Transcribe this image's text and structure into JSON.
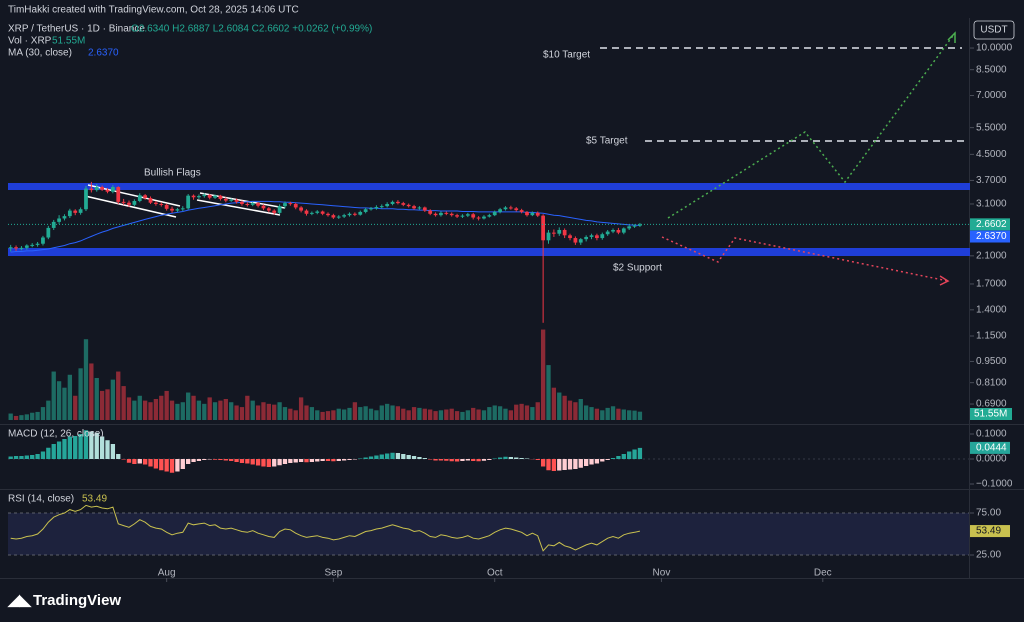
{
  "page": {
    "credit": "TimHakki created with TradingView.com, Oct 28, 2025 14:06 UTC",
    "brand": "TradingView",
    "currency": "USDT"
  },
  "chart_data": [
    {
      "type": "candlestick",
      "symbol": "XRP / TetherUS · 1D · Binance",
      "ohlc_legend": "O2.6340 H2.6887 L2.6084 C2.6602 +0.0262 (+0.99%)",
      "log_scale": true,
      "up_color": "#22ab94",
      "down_color": "#f23645",
      "xlim": [
        -0.5,
        178
      ],
      "xticks": [
        {
          "value": 29,
          "label": "Aug"
        },
        {
          "value": 60,
          "label": "Sep"
        },
        {
          "value": 90,
          "label": "Oct"
        },
        {
          "value": 121,
          "label": "Nov"
        },
        {
          "value": 151,
          "label": "Dec"
        }
      ],
      "ylim": [
        0.612,
        12.16
      ],
      "yticks": [
        {
          "value": 10,
          "label": "10.0000"
        },
        {
          "value": 8.5,
          "label": "8.5000"
        },
        {
          "value": 7,
          "label": "7.0000"
        },
        {
          "value": 5.5,
          "label": "5.5000"
        },
        {
          "value": 4.5,
          "label": "4.5000"
        },
        {
          "value": 3.7,
          "label": "3.7000"
        },
        {
          "value": 3.1,
          "label": "3.1000"
        },
        {
          "value": 2.1,
          "label": "2.1000"
        },
        {
          "value": 1.7,
          "label": "1.7000"
        },
        {
          "value": 1.4,
          "label": "1.4000"
        },
        {
          "value": 1.15,
          "label": "1.1500"
        },
        {
          "value": 0.95,
          "label": "0.9500"
        },
        {
          "value": 0.81,
          "label": "0.8100"
        },
        {
          "value": 0.69,
          "label": "0.6900"
        }
      ],
      "annotations": [
        "Bullish Flags",
        "$10 Target",
        "$5 Target",
        "$2 Support"
      ],
      "open": [
        2.22,
        2.24,
        2.22,
        2.23,
        2.27,
        2.28,
        2.3,
        2.41,
        2.59,
        2.71,
        2.78,
        2.83,
        2.95,
        2.9,
        2.98,
        3.48,
        3.44,
        3.52,
        3.45,
        3.4,
        3.52,
        3.15,
        3.13,
        3.08,
        3.17,
        3.31,
        3.24,
        3.13,
        3.1,
        3.08,
        2.99,
        2.95,
        2.98,
        3.0,
        3.3,
        3.26,
        3.29,
        3.32,
        3.25,
        3.3,
        3.22,
        3.18,
        3.2,
        3.15,
        3.1,
        3.08,
        3.12,
        3.06,
        3.0,
        2.95,
        2.9,
        3.05,
        3.12,
        3.1,
        3.02,
        2.95,
        2.88,
        2.9,
        2.93,
        2.88,
        2.85,
        2.8,
        2.82,
        2.85,
        2.88,
        2.86,
        2.92,
        2.98,
        3.0,
        3.03,
        3.05,
        3.1,
        3.15,
        3.12,
        3.08,
        3.05,
        3.0,
        3.02,
        2.95,
        2.88,
        2.85,
        2.9,
        2.88,
        2.85,
        2.82,
        2.84,
        2.87,
        2.8,
        2.78,
        2.82,
        2.85,
        2.92,
        2.98,
        3.02,
        3.0,
        2.96,
        2.92,
        2.85,
        2.9,
        2.84,
        2.36,
        2.5,
        2.48,
        2.55,
        2.45,
        2.4,
        2.32,
        2.38,
        2.42,
        2.45,
        2.4,
        2.47,
        2.52,
        2.55,
        2.5,
        2.58,
        2.62,
        2.634
      ],
      "high": [
        2.28,
        2.27,
        2.26,
        2.29,
        2.31,
        2.33,
        2.44,
        2.63,
        2.75,
        2.85,
        2.87,
        2.99,
        2.98,
        3.02,
        3.55,
        3.66,
        3.6,
        3.56,
        3.49,
        3.57,
        3.54,
        3.22,
        3.18,
        3.21,
        3.36,
        3.34,
        3.28,
        3.17,
        3.14,
        3.11,
        3.04,
        3.01,
        3.05,
        3.34,
        3.33,
        3.33,
        3.36,
        3.34,
        3.33,
        3.32,
        3.26,
        3.23,
        3.23,
        3.18,
        3.14,
        3.15,
        3.14,
        3.09,
        3.03,
        2.98,
        3.09,
        3.16,
        3.15,
        3.13,
        3.05,
        2.98,
        2.93,
        2.96,
        2.95,
        2.91,
        2.88,
        2.85,
        2.88,
        2.91,
        2.91,
        2.95,
        3.01,
        3.03,
        3.07,
        3.09,
        3.14,
        3.18,
        3.19,
        3.15,
        3.11,
        3.08,
        3.05,
        3.04,
        2.98,
        2.91,
        2.93,
        2.93,
        2.91,
        2.88,
        2.87,
        2.9,
        2.9,
        2.83,
        2.85,
        2.88,
        2.95,
        3.01,
        3.05,
        3.06,
        3.03,
        2.99,
        2.94,
        2.93,
        2.93,
        2.87,
        2.55,
        2.56,
        2.6,
        2.58,
        2.48,
        2.43,
        2.4,
        2.45,
        2.48,
        2.48,
        2.5,
        2.55,
        2.58,
        2.59,
        2.6,
        2.64,
        2.66,
        2.6887
      ],
      "low": [
        2.17,
        2.18,
        2.19,
        2.2,
        2.24,
        2.25,
        2.27,
        2.38,
        2.55,
        2.67,
        2.74,
        2.79,
        2.85,
        2.86,
        2.94,
        3.38,
        3.4,
        3.42,
        3.36,
        3.36,
        3.1,
        3.08,
        3.03,
        3.05,
        3.14,
        3.2,
        3.1,
        3.06,
        3.04,
        2.95,
        2.9,
        2.92,
        2.94,
        2.97,
        3.2,
        3.22,
        3.25,
        3.21,
        3.22,
        3.18,
        3.14,
        3.15,
        3.11,
        3.06,
        3.04,
        3.05,
        3.02,
        2.96,
        2.91,
        2.86,
        2.87,
        3.0,
        3.06,
        2.98,
        2.91,
        2.84,
        2.85,
        2.87,
        2.85,
        2.82,
        2.77,
        2.77,
        2.79,
        2.82,
        2.83,
        2.84,
        2.89,
        2.95,
        2.97,
        3.0,
        3.02,
        3.07,
        3.09,
        3.05,
        3.02,
        2.97,
        2.97,
        2.92,
        2.85,
        2.82,
        2.82,
        2.85,
        2.82,
        2.79,
        2.79,
        2.81,
        2.76,
        2.74,
        2.76,
        2.8,
        2.83,
        2.89,
        2.95,
        2.97,
        2.93,
        2.89,
        2.82,
        2.83,
        2.81,
        1.27,
        2.3,
        2.42,
        2.44,
        2.4,
        2.36,
        2.28,
        2.28,
        2.34,
        2.38,
        2.36,
        2.37,
        2.44,
        2.49,
        2.47,
        2.47,
        2.55,
        2.59,
        2.6084
      ],
      "close": [
        2.24,
        2.22,
        2.23,
        2.27,
        2.28,
        2.3,
        2.41,
        2.59,
        2.71,
        2.78,
        2.83,
        2.95,
        2.9,
        2.98,
        3.48,
        3.44,
        3.52,
        3.45,
        3.4,
        3.52,
        3.15,
        3.13,
        3.08,
        3.17,
        3.31,
        3.24,
        3.13,
        3.1,
        3.08,
        2.99,
        2.95,
        2.98,
        3.0,
        3.3,
        3.26,
        3.29,
        3.32,
        3.25,
        3.3,
        3.22,
        3.18,
        3.2,
        3.15,
        3.1,
        3.08,
        3.12,
        3.06,
        3.0,
        2.95,
        2.9,
        3.05,
        3.12,
        3.1,
        3.02,
        2.95,
        2.88,
        2.9,
        2.93,
        2.88,
        2.85,
        2.8,
        2.82,
        2.85,
        2.88,
        2.86,
        2.92,
        2.98,
        3.0,
        3.03,
        3.05,
        3.1,
        3.15,
        3.12,
        3.08,
        3.05,
        3.0,
        3.02,
        2.95,
        2.88,
        2.85,
        2.9,
        2.88,
        2.85,
        2.82,
        2.84,
        2.87,
        2.8,
        2.78,
        2.82,
        2.85,
        2.92,
        2.98,
        3.02,
        3.0,
        2.96,
        2.92,
        2.85,
        2.9,
        2.84,
        2.36,
        2.5,
        2.48,
        2.55,
        2.45,
        2.4,
        2.32,
        2.38,
        2.42,
        2.45,
        2.4,
        2.47,
        2.52,
        2.55,
        2.5,
        2.58,
        2.62,
        2.634,
        2.6602
      ],
      "volume": {
        "name": "Vol · XRP",
        "last_label": "51.55M",
        "ylim": [
          0,
          650
        ],
        "up_color": "#1d6b63",
        "down_color": "#8c2a36",
        "values": [
          40,
          25,
          30,
          35,
          45,
          50,
          80,
          120,
          300,
          240,
          200,
          280,
          150,
          320,
          500,
          350,
          260,
          180,
          190,
          250,
          300,
          210,
          140,
          120,
          150,
          120,
          110,
          130,
          150,
          180,
          120,
          100,
          110,
          170,
          150,
          120,
          100,
          140,
          110,
          120,
          130,
          110,
          90,
          80,
          150,
          120,
          90,
          110,
          100,
          95,
          110,
          80,
          70,
          60,
          140,
          90,
          80,
          60,
          50,
          55,
          60,
          70,
          65,
          75,
          110,
          80,
          85,
          70,
          60,
          90,
          100,
          90,
          85,
          70,
          60,
          80,
          75,
          70,
          65,
          55,
          60,
          65,
          70,
          55,
          50,
          60,
          75,
          65,
          60,
          80,
          90,
          85,
          70,
          60,
          95,
          100,
          90,
          80,
          110,
          560,
          340,
          200,
          170,
          150,
          120,
          110,
          130,
          90,
          80,
          70,
          60,
          75,
          85,
          70,
          65,
          60,
          58,
          51.55
        ]
      },
      "ma": {
        "name": "MA (30, close)",
        "last_label": "2.6370",
        "color": "#2962ff",
        "values": [
          2.16,
          2.17,
          2.17,
          2.18,
          2.18,
          2.19,
          2.2,
          2.21,
          2.23,
          2.25,
          2.27,
          2.3,
          2.32,
          2.35,
          2.39,
          2.43,
          2.47,
          2.51,
          2.54,
          2.58,
          2.61,
          2.64,
          2.67,
          2.7,
          2.73,
          2.76,
          2.79,
          2.82,
          2.85,
          2.87,
          2.89,
          2.91,
          2.93,
          2.96,
          2.98,
          3.0,
          3.02,
          3.04,
          3.06,
          3.08,
          3.1,
          3.12,
          3.13,
          3.14,
          3.15,
          3.16,
          3.16,
          3.16,
          3.16,
          3.15,
          3.15,
          3.14,
          3.14,
          3.13,
          3.12,
          3.11,
          3.1,
          3.09,
          3.08,
          3.07,
          3.06,
          3.05,
          3.04,
          3.03,
          3.02,
          3.01,
          3.01,
          3.0,
          3.0,
          2.99,
          2.99,
          2.99,
          2.98,
          2.98,
          2.97,
          2.97,
          2.96,
          2.96,
          2.95,
          2.95,
          2.94,
          2.94,
          2.94,
          2.94,
          2.93,
          2.93,
          2.93,
          2.92,
          2.92,
          2.92,
          2.92,
          2.92,
          2.92,
          2.92,
          2.92,
          2.92,
          2.91,
          2.91,
          2.9,
          2.89,
          2.87,
          2.85,
          2.84,
          2.82,
          2.8,
          2.78,
          2.76,
          2.74,
          2.73,
          2.71,
          2.7,
          2.69,
          2.68,
          2.67,
          2.66,
          2.65,
          2.645,
          2.637
        ]
      }
    },
    {
      "type": "bar",
      "name": "MACD (12, 26, close)",
      "ylim": [
        -0.116,
        0.124
      ],
      "yticks": [
        {
          "value": 0.1,
          "label": "0.1000"
        },
        {
          "value": 0,
          "label": "0.0000"
        },
        {
          "value": -0.1,
          "label": "−0.1000"
        }
      ],
      "colors": {
        "up_grow": "#26a69a",
        "up_fall": "#b2dfdb",
        "down_fall": "#ff5252",
        "down_rise": "#ffcdd2"
      },
      "values": [
        0.01,
        0.012,
        0.012,
        0.014,
        0.016,
        0.02,
        0.03,
        0.045,
        0.06,
        0.07,
        0.08,
        0.09,
        0.092,
        0.1,
        0.115,
        0.11,
        0.105,
        0.09,
        0.075,
        0.06,
        0.02,
        -0.002,
        -0.015,
        -0.02,
        -0.018,
        -0.022,
        -0.03,
        -0.038,
        -0.045,
        -0.05,
        -0.055,
        -0.05,
        -0.04,
        -0.02,
        -0.012,
        -0.008,
        -0.004,
        -0.002,
        -0.003,
        -0.004,
        -0.006,
        -0.008,
        -0.012,
        -0.016,
        -0.018,
        -0.022,
        -0.026,
        -0.03,
        -0.032,
        -0.03,
        -0.025,
        -0.02,
        -0.016,
        -0.014,
        -0.012,
        -0.013,
        -0.012,
        -0.01,
        -0.008,
        -0.008,
        -0.009,
        -0.008,
        -0.006,
        -0.004,
        -0.002,
        0.002,
        0.006,
        0.01,
        0.014,
        0.018,
        0.022,
        0.025,
        0.024,
        0.02,
        0.016,
        0.012,
        0.008,
        0.004,
        -0.002,
        -0.006,
        -0.006,
        -0.007,
        -0.009,
        -0.01,
        -0.008,
        -0.006,
        -0.008,
        -0.009,
        -0.007,
        -0.004,
        0.002,
        0.006,
        0.009,
        0.008,
        0.006,
        0.004,
        0.002,
        -0.001,
        -0.004,
        -0.03,
        -0.045,
        -0.048,
        -0.046,
        -0.044,
        -0.042,
        -0.04,
        -0.035,
        -0.028,
        -0.022,
        -0.018,
        -0.01,
        -0.004,
        0.004,
        0.012,
        0.02,
        0.03,
        0.038,
        0.0444
      ]
    },
    {
      "type": "line",
      "name": "RSI (14, close)",
      "color": "#c9c14f",
      "ylim": [
        0,
        100
      ],
      "yticks": [
        {
          "value": 75,
          "label": "75.00"
        },
        {
          "value": 25,
          "label": "25.00"
        }
      ],
      "values": [
        45,
        44,
        45,
        47,
        48,
        50,
        56,
        64,
        70,
        73,
        75,
        79,
        77,
        79,
        84,
        82,
        83,
        81,
        80,
        82,
        62,
        60,
        58,
        62,
        67,
        64,
        59,
        57,
        56,
        52,
        49,
        51,
        52,
        63,
        61,
        62,
        63,
        60,
        61,
        57,
        56,
        57,
        55,
        53,
        52,
        54,
        51,
        49,
        47,
        46,
        53,
        56,
        55,
        51,
        48,
        46,
        47,
        48,
        46,
        45,
        43,
        44,
        46,
        48,
        47,
        50,
        53,
        54,
        56,
        57,
        59,
        61,
        59,
        57,
        56,
        53,
        54,
        51,
        47,
        46,
        49,
        48,
        46,
        45,
        46,
        48,
        45,
        44,
        46,
        48,
        52,
        55,
        57,
        56,
        54,
        52,
        48,
        51,
        48,
        30,
        37,
        36,
        40,
        36,
        34,
        31,
        34,
        37,
        39,
        37,
        41,
        45,
        47,
        45,
        49,
        51,
        52,
        53.49
      ]
    }
  ]
}
